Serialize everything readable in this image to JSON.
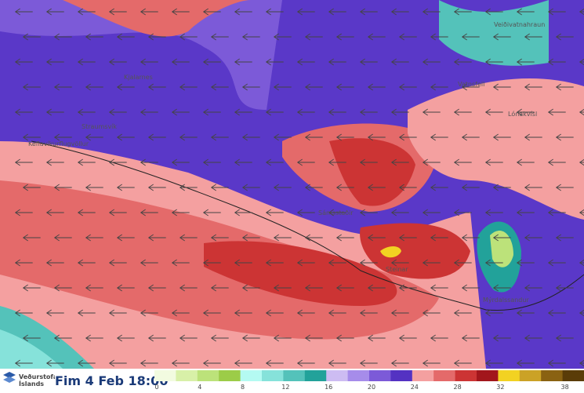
{
  "header": {
    "logo": [
      "Veðurstofa",
      "Íslands"
    ],
    "time": "Fim 4 Feb 18:00"
  },
  "legend": {
    "colors": [
      "#f2fbe0",
      "#d8f0a8",
      "#bce27a",
      "#9ccc48",
      "#b4faf2",
      "#86e2da",
      "#54c2ba",
      "#22a29a",
      "#cdbcf2",
      "#a68cea",
      "#7c5ad8",
      "#5432c2",
      "#f4a0a0",
      "#e46a6a",
      "#cc3434",
      "#a2161c",
      "#f2d222",
      "#cba226",
      "#8a6212",
      "#5a3c08"
    ],
    "ticks": [
      0,
      4,
      8,
      12,
      16,
      20,
      24,
      28,
      32,
      38
    ]
  },
  "places": [
    "Veiðivatnahraun",
    "Vatnsfell",
    "Lónakvísl",
    "Kjalarnes",
    "Straumsvík",
    "Keflavíkurflugvöllur",
    "Sámsstaðir",
    "Steinar",
    "Mýrdalssandur"
  ]
}
